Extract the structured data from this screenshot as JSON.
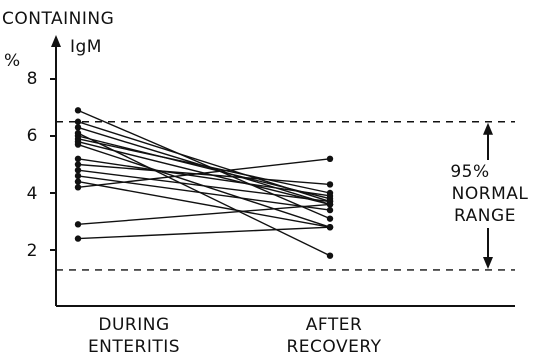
{
  "chart_data": {
    "type": "line",
    "ylabel_lines": [
      "CONTAINING",
      "IgM",
      "%"
    ],
    "ylim": [
      0,
      9
    ],
    "yticks": [
      2,
      4,
      6,
      8
    ],
    "categories": [
      {
        "lines": [
          "DURING",
          "ENTERITIS"
        ]
      },
      {
        "lines": [
          "AFTER",
          "RECOVERY"
        ]
      }
    ],
    "normal_range": {
      "lower": 1.3,
      "upper": 6.5,
      "label_lines": [
        "95%",
        "NORMAL",
        "RANGE"
      ]
    },
    "pairs": [
      {
        "during": 6.9,
        "after": 3.1
      },
      {
        "during": 6.5,
        "after": 3.7
      },
      {
        "during": 6.3,
        "after": 3.6
      },
      {
        "during": 6.1,
        "after": 1.8
      },
      {
        "during": 6.0,
        "after": 3.8
      },
      {
        "during": 5.9,
        "after": 4.0
      },
      {
        "during": 5.8,
        "after": 3.6
      },
      {
        "during": 5.7,
        "after": 2.8
      },
      {
        "during": 5.2,
        "after": 3.9
      },
      {
        "during": 5.0,
        "after": 4.3
      },
      {
        "during": 4.8,
        "after": 3.7
      },
      {
        "during": 4.6,
        "after": 3.4
      },
      {
        "during": 4.4,
        "after": 2.8
      },
      {
        "during": 4.2,
        "after": 5.2
      },
      {
        "during": 2.9,
        "after": 3.6
      },
      {
        "during": 2.4,
        "after": 2.8
      }
    ]
  }
}
